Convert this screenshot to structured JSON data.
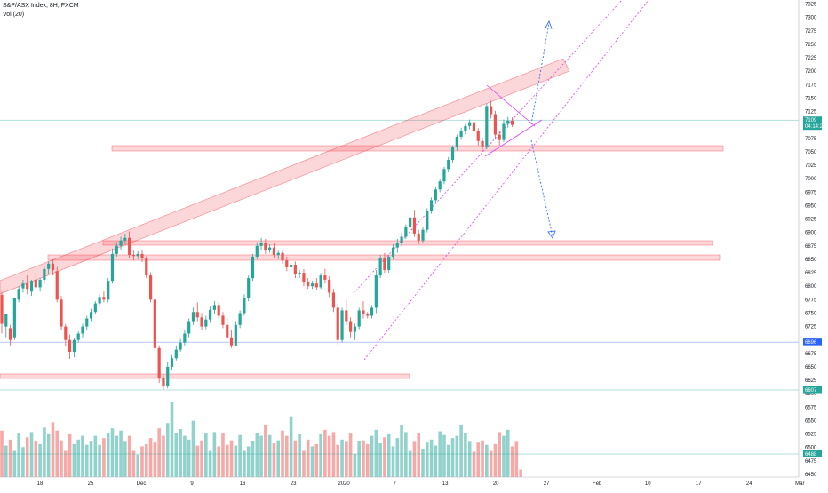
{
  "header": {
    "symbol_line": "S&P/ASX Index, 8H, FXCM",
    "volume_line": "Vol (20)"
  },
  "chart_data": {
    "type": "candlestick",
    "price_axis": {
      "min": 6450,
      "max": 7325,
      "step": 25,
      "ticks": [
        7325,
        7300,
        7275,
        7250,
        7225,
        7200,
        7175,
        7150,
        7125,
        7100,
        7075,
        7050,
        7025,
        7000,
        6975,
        6950,
        6925,
        6900,
        6875,
        6850,
        6825,
        6800,
        6775,
        6750,
        6725,
        6700,
        6675,
        6650,
        6625,
        6600,
        6575,
        6550,
        6525,
        6500,
        6475,
        6450
      ]
    },
    "time_axis": {
      "labels": [
        "18",
        "25",
        "Dec",
        "9",
        "16",
        "23",
        "2020",
        "7",
        "13",
        "20",
        "27",
        "Feb",
        "10",
        "17",
        "24",
        "Mar"
      ]
    },
    "price_tags": [
      {
        "value": 7109,
        "label": "7109",
        "sub": "04:14:22",
        "color": "#26a69a"
      },
      {
        "value": 6696,
        "label": "6696",
        "color": "#2962ff"
      },
      {
        "value": 6607,
        "label": "6607",
        "color": "#26a69a"
      },
      {
        "value": 6488,
        "label": "6488",
        "color": "#26a69a"
      }
    ],
    "candles": [
      [
        6784,
        6790,
        6730,
        6712
      ],
      [
        6725,
        6732,
        6748,
        6705
      ],
      [
        6722,
        6728,
        6700,
        6690
      ],
      [
        6705,
        6712,
        6778,
        6700
      ],
      [
        6775,
        6800,
        6795,
        6770
      ],
      [
        6796,
        6812,
        6805,
        6788
      ],
      [
        6805,
        6820,
        6795,
        6785
      ],
      [
        6790,
        6812,
        6810,
        6782
      ],
      [
        6812,
        6825,
        6798,
        6792
      ],
      [
        6798,
        6815,
        6812,
        6790
      ],
      [
        6812,
        6838,
        6832,
        6805
      ],
      [
        6832,
        6846,
        6842,
        6822
      ],
      [
        6842,
        6850,
        6830,
        6820
      ],
      [
        6828,
        6836,
        6775,
        6770
      ],
      [
        6775,
        6782,
        6725,
        6718
      ],
      [
        6725,
        6730,
        6700,
        6688
      ],
      [
        6700,
        6710,
        6678,
        6665
      ],
      [
        6678,
        6704,
        6700,
        6668
      ],
      [
        6700,
        6716,
        6712,
        6695
      ],
      [
        6712,
        6730,
        6725,
        6705
      ],
      [
        6725,
        6745,
        6740,
        6718
      ],
      [
        6740,
        6758,
        6752,
        6735
      ],
      [
        6752,
        6772,
        6768,
        6748
      ],
      [
        6768,
        6786,
        6780,
        6762
      ],
      [
        6780,
        6790,
        6775,
        6770
      ],
      [
        6775,
        6815,
        6810,
        6770
      ],
      [
        6810,
        6870,
        6860,
        6805
      ],
      [
        6860,
        6882,
        6875,
        6855
      ],
      [
        6875,
        6892,
        6885,
        6868
      ],
      [
        6885,
        6898,
        6890,
        6878
      ],
      [
        6890,
        6902,
        6858,
        6852
      ],
      [
        6858,
        6866,
        6856,
        6848
      ],
      [
        6856,
        6865,
        6860,
        6850
      ],
      [
        6860,
        6868,
        6852,
        6845
      ],
      [
        6852,
        6856,
        6820,
        6815
      ],
      [
        6820,
        6826,
        6775,
        6770
      ],
      [
        6775,
        6780,
        6685,
        6675
      ],
      [
        6685,
        6690,
        6630,
        6620
      ],
      [
        6630,
        6636,
        6615,
        6608
      ],
      [
        6615,
        6660,
        6650,
        6610
      ],
      [
        6650,
        6672,
        6666,
        6645
      ],
      [
        6666,
        6690,
        6682,
        6662
      ],
      [
        6682,
        6702,
        6695,
        6678
      ],
      [
        6695,
        6718,
        6712,
        6690
      ],
      [
        6712,
        6740,
        6735,
        6705
      ],
      [
        6735,
        6760,
        6752,
        6728
      ],
      [
        6752,
        6770,
        6742,
        6735
      ],
      [
        6742,
        6750,
        6725,
        6718
      ],
      [
        6725,
        6745,
        6738,
        6720
      ],
      [
        6738,
        6762,
        6756,
        6732
      ],
      [
        6756,
        6772,
        6765,
        6748
      ],
      [
        6765,
        6770,
        6745,
        6740
      ],
      [
        6745,
        6752,
        6728,
        6722
      ],
      [
        6728,
        6740,
        6705,
        6700
      ],
      [
        6705,
        6718,
        6690,
        6685
      ],
      [
        6690,
        6735,
        6728,
        6688
      ],
      [
        6728,
        6755,
        6750,
        6722
      ],
      [
        6750,
        6785,
        6778,
        6745
      ],
      [
        6778,
        6820,
        6815,
        6772
      ],
      [
        6815,
        6860,
        6855,
        6810
      ],
      [
        6855,
        6882,
        6875,
        6850
      ],
      [
        6875,
        6890,
        6880,
        6868
      ],
      [
        6880,
        6888,
        6868,
        6860
      ],
      [
        6868,
        6878,
        6872,
        6862
      ],
      [
        6872,
        6880,
        6858,
        6852
      ],
      [
        6858,
        6866,
        6862,
        6850
      ],
      [
        6862,
        6868,
        6848,
        6842
      ],
      [
        6848,
        6855,
        6835,
        6828
      ],
      [
        6835,
        6842,
        6840,
        6825
      ],
      [
        6840,
        6846,
        6822,
        6815
      ],
      [
        6822,
        6830,
        6825,
        6815
      ],
      [
        6825,
        6832,
        6808,
        6800
      ],
      [
        6808,
        6815,
        6800,
        6795
      ],
      [
        6800,
        6810,
        6805,
        6795
      ],
      [
        6805,
        6815,
        6798,
        6792
      ],
      [
        6798,
        6825,
        6820,
        6795
      ],
      [
        6820,
        6832,
        6812,
        6805
      ],
      [
        6812,
        6818,
        6788,
        6780
      ],
      [
        6788,
        6795,
        6760,
        6752
      ],
      [
        6760,
        6768,
        6700,
        6690
      ],
      [
        6700,
        6760,
        6755,
        6695
      ],
      [
        6755,
        6775,
        6735,
        6728
      ],
      [
        6735,
        6742,
        6715,
        6705
      ],
      [
        6715,
        6730,
        6725,
        6700
      ],
      [
        6725,
        6760,
        6755,
        6720
      ],
      [
        6755,
        6772,
        6748,
        6740
      ],
      [
        6748,
        6752,
        6745,
        6740
      ],
      [
        6745,
        6765,
        6760,
        6740
      ],
      [
        6760,
        6830,
        6820,
        6750
      ],
      [
        6820,
        6858,
        6852,
        6815
      ],
      [
        6852,
        6862,
        6830,
        6825
      ],
      [
        6830,
        6858,
        6855,
        6825
      ],
      [
        6855,
        6878,
        6872,
        6850
      ],
      [
        6872,
        6888,
        6880,
        6862
      ],
      [
        6880,
        6900,
        6892,
        6875
      ],
      [
        6892,
        6915,
        6910,
        6888
      ],
      [
        6910,
        6932,
        6928,
        6905
      ],
      [
        6928,
        6942,
        6898,
        6892
      ],
      [
        6898,
        6905,
        6885,
        6878
      ],
      [
        6885,
        6910,
        6905,
        6880
      ],
      [
        6905,
        6945,
        6940,
        6900
      ],
      [
        6940,
        6965,
        6960,
        6935
      ],
      [
        6960,
        6985,
        6980,
        6955
      ],
      [
        6980,
        7000,
        6995,
        6975
      ],
      [
        6995,
        7022,
        7018,
        6990
      ],
      [
        7018,
        7040,
        7035,
        7012
      ],
      [
        7035,
        7062,
        7058,
        7030
      ],
      [
        7058,
        7082,
        7078,
        7052
      ],
      [
        7078,
        7095,
        7088,
        7072
      ],
      [
        7088,
        7102,
        7098,
        7082
      ],
      [
        7098,
        7110,
        7105,
        7092
      ],
      [
        7105,
        7108,
        7088,
        7082
      ],
      [
        7088,
        7094,
        7070,
        7062
      ],
      [
        7070,
        7076,
        7060,
        7050
      ],
      [
        7060,
        7140,
        7135,
        7055
      ],
      [
        7135,
        7145,
        7120,
        7112
      ],
      [
        7120,
        7126,
        7082,
        7075
      ],
      [
        7082,
        7090,
        7072,
        7062
      ],
      [
        7072,
        7110,
        7102,
        7068
      ],
      [
        7102,
        7115,
        7108,
        7095
      ],
      [
        7108,
        7114,
        7100,
        7096
      ]
    ],
    "volumes": [
      62,
      42,
      50,
      35,
      58,
      40,
      53,
      60,
      48,
      44,
      66,
      57,
      73,
      62,
      49,
      35,
      57,
      44,
      50,
      55,
      43,
      48,
      55,
      43,
      52,
      58,
      65,
      55,
      62,
      47,
      55,
      35,
      30,
      41,
      44,
      52,
      46,
      65,
      55,
      72,
      100,
      59,
      64,
      55,
      50,
      75,
      42,
      49,
      58,
      35,
      60,
      41,
      58,
      43,
      49,
      42,
      56,
      35,
      41,
      48,
      59,
      55,
      70,
      56,
      45,
      49,
      62,
      55,
      81,
      49,
      57,
      35,
      50,
      41,
      44,
      57,
      63,
      55,
      60,
      43,
      50,
      47,
      58,
      31,
      48,
      49,
      44,
      55,
      63,
      45,
      53,
      57,
      41,
      52,
      70,
      60,
      35,
      47,
      59,
      38,
      46,
      50,
      42,
      61,
      56,
      43,
      52,
      55,
      70,
      59,
      47,
      34,
      46,
      49,
      43,
      35,
      44,
      60,
      55,
      63,
      41,
      47,
      10
    ],
    "volume_max": 160
  }
}
